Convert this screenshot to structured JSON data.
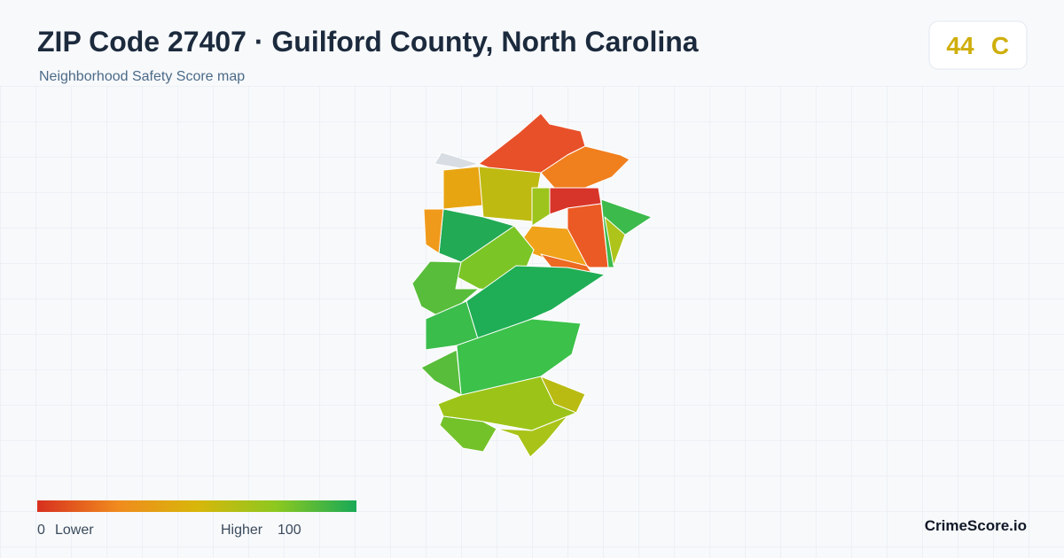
{
  "header": {
    "title": "ZIP Code 27407 · Guilford County, North Carolina",
    "subtitle": "Neighborhood Safety Score map"
  },
  "score": {
    "value": "44",
    "grade": "C"
  },
  "legend": {
    "min": "0",
    "min_label": "Lower",
    "max_label": "Higher",
    "max": "100"
  },
  "brand": "CrimeScore.io"
}
